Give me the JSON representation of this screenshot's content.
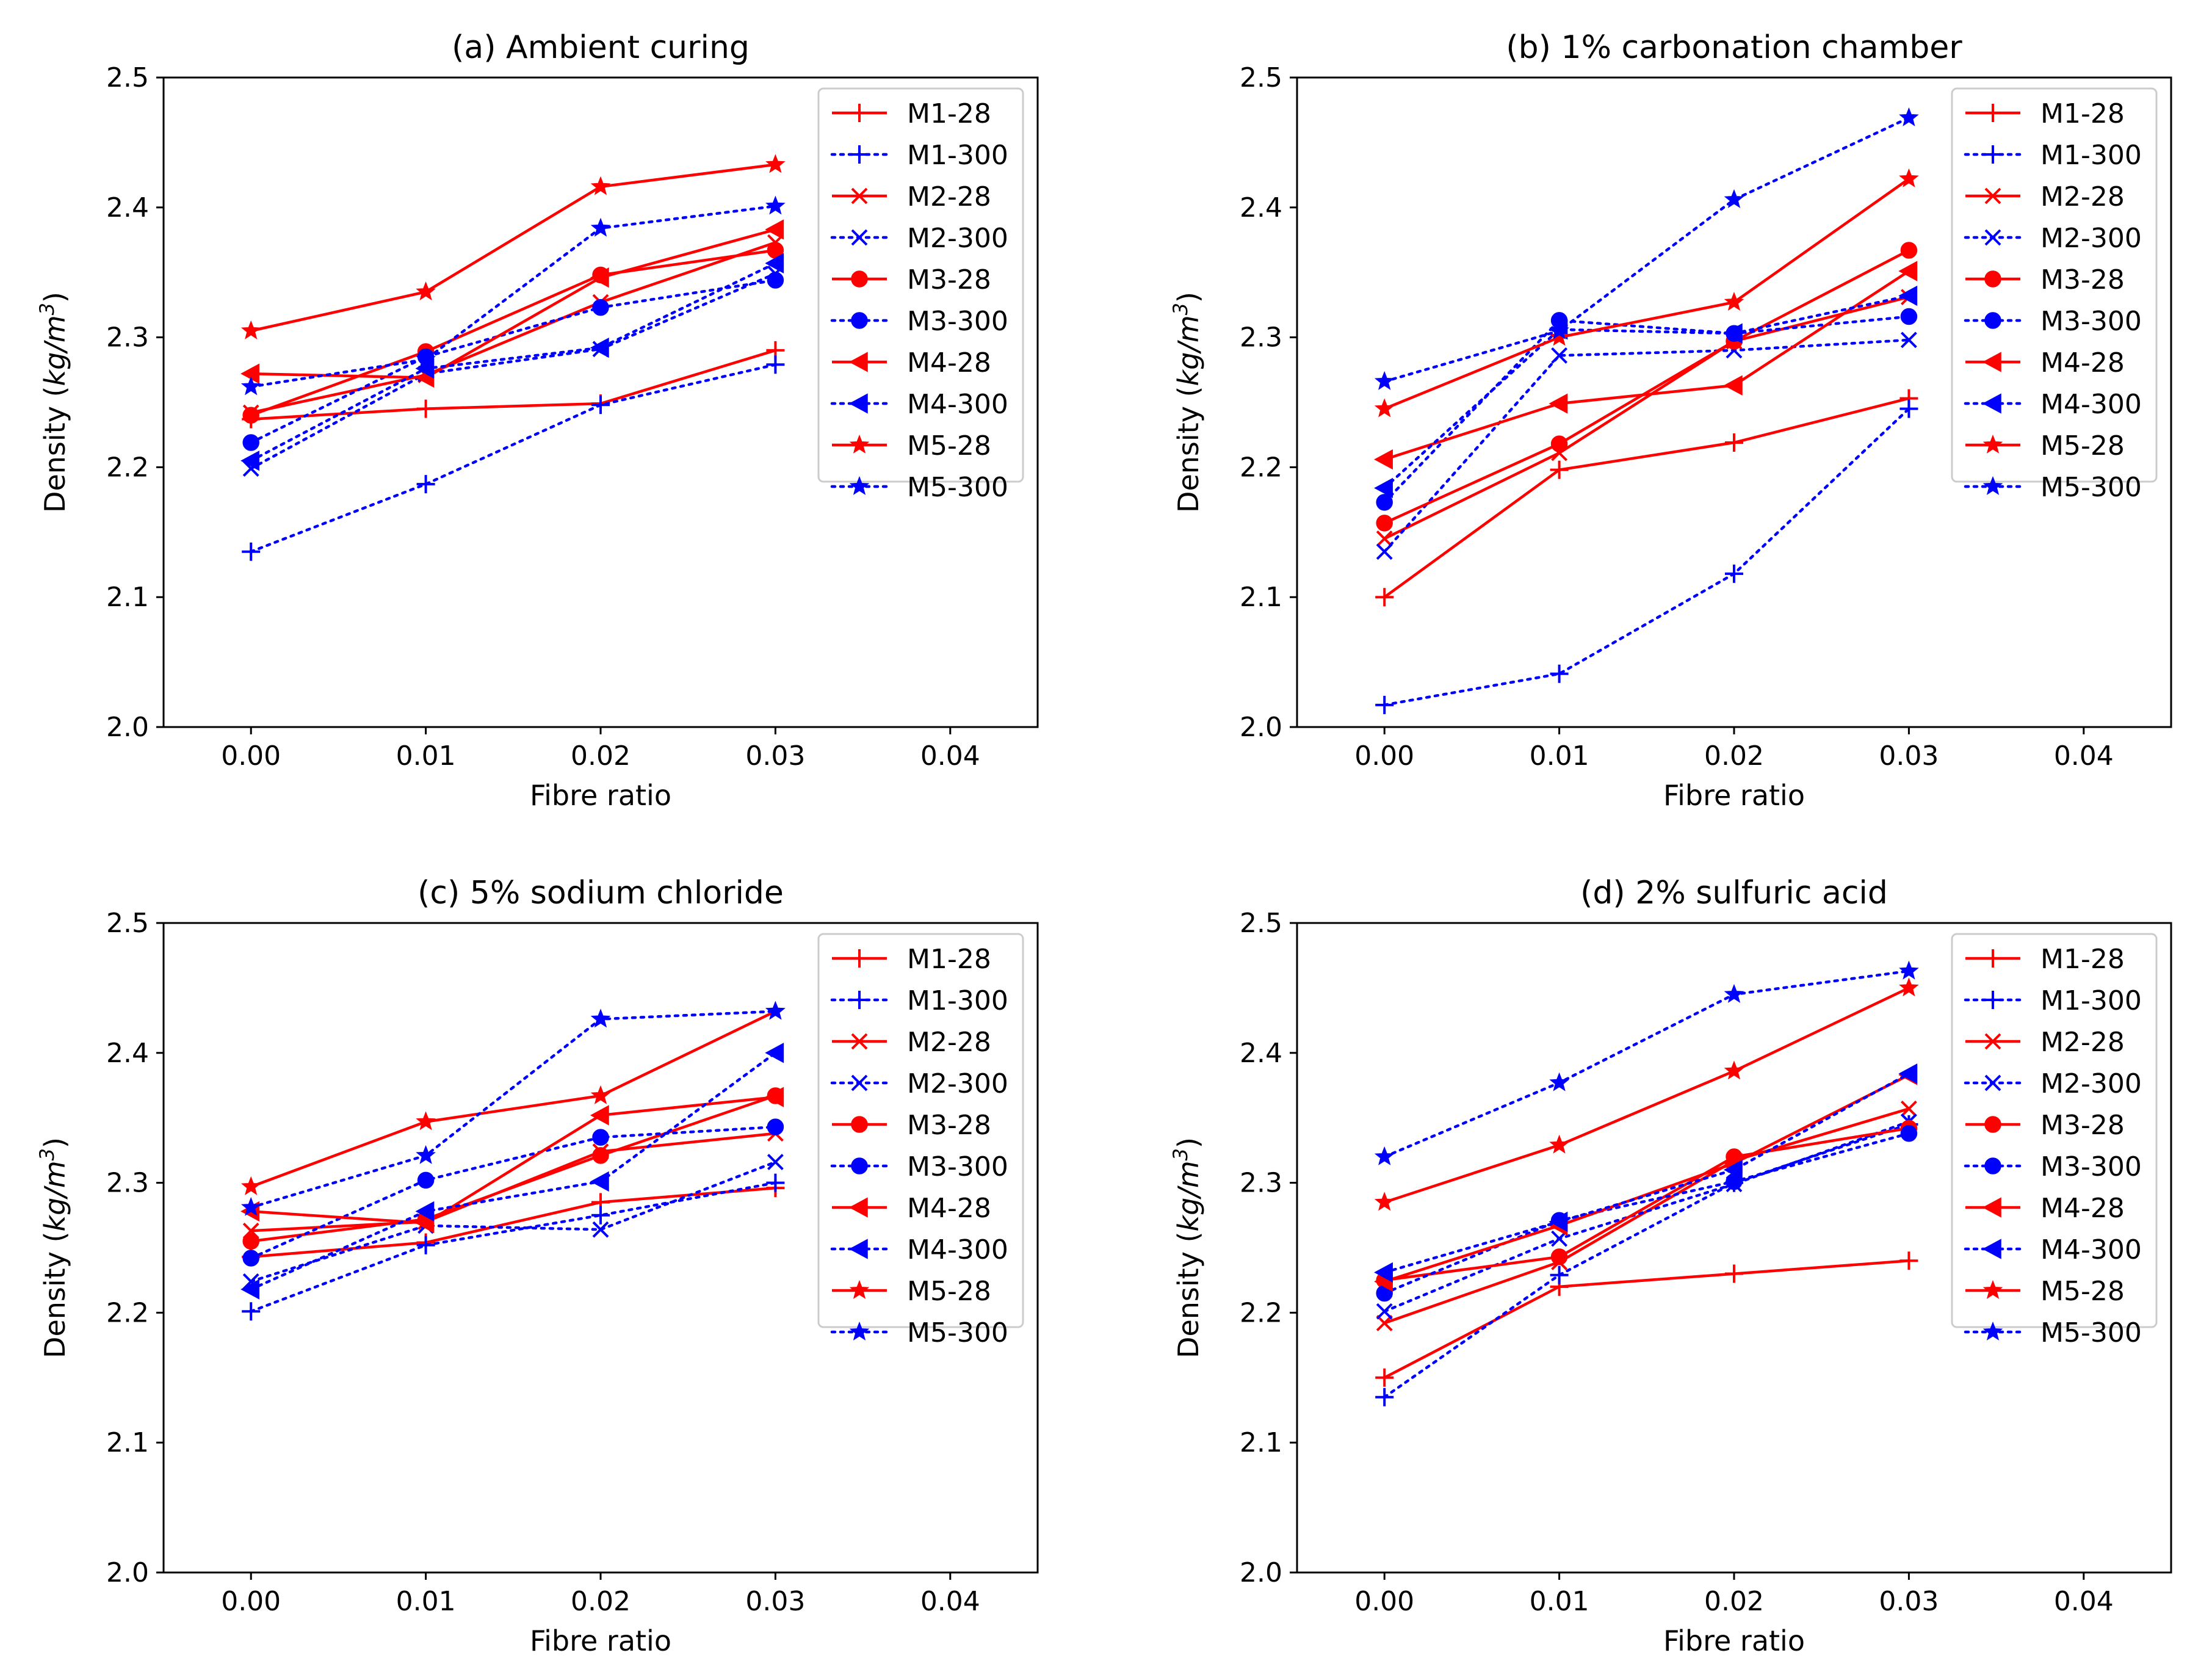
{
  "chart_data": [
    {
      "type": "line",
      "title": "(a) Ambient curing",
      "xlabel": "Fibre ratio",
      "ylabel_text": "Density (",
      "ylabel_unit_base": "kg/m",
      "ylabel_unit_exp": "3",
      "ylabel_close": ")",
      "xlim": [
        -0.005,
        0.045
      ],
      "ylim": [
        2.0,
        2.5
      ],
      "x_ticks": [
        "0.00",
        "0.01",
        "0.02",
        "0.03",
        "0.04"
      ],
      "x_tick_values": [
        0.0,
        0.01,
        0.02,
        0.03,
        0.04
      ],
      "y_ticks": [
        "2.0",
        "2.1",
        "2.2",
        "2.3",
        "2.4",
        "2.5"
      ],
      "y_tick_values": [
        2.0,
        2.1,
        2.2,
        2.3,
        2.4,
        2.5
      ],
      "legend_position": "top-right",
      "x": [
        0.0,
        0.01,
        0.02,
        0.03
      ],
      "series": [
        {
          "name": "M1-28",
          "color": "#ff0000",
          "dash": "solid",
          "marker": "plus",
          "values": [
            2.237,
            2.245,
            2.249,
            2.29
          ]
        },
        {
          "name": "M1-300",
          "color": "#0000ff",
          "dash": "dotted",
          "marker": "plus",
          "values": [
            2.135,
            2.187,
            2.248,
            2.279
          ]
        },
        {
          "name": "M2-28",
          "color": "#ff0000",
          "dash": "solid",
          "marker": "x",
          "values": [
            2.242,
            2.271,
            2.327,
            2.373
          ]
        },
        {
          "name": "M2-300",
          "color": "#0000ff",
          "dash": "dotted",
          "marker": "x",
          "values": [
            2.199,
            2.272,
            2.291,
            2.349
          ]
        },
        {
          "name": "M3-28",
          "color": "#ff0000",
          "dash": "solid",
          "marker": "circle",
          "values": [
            2.24,
            2.289,
            2.348,
            2.367
          ]
        },
        {
          "name": "M3-300",
          "color": "#0000ff",
          "dash": "dotted",
          "marker": "circle",
          "values": [
            2.219,
            2.285,
            2.323,
            2.344
          ]
        },
        {
          "name": "M4-28",
          "color": "#ff0000",
          "dash": "solid",
          "marker": "triangle",
          "values": [
            2.272,
            2.269,
            2.346,
            2.383
          ]
        },
        {
          "name": "M4-300",
          "color": "#0000ff",
          "dash": "dotted",
          "marker": "triangle",
          "values": [
            2.205,
            2.276,
            2.292,
            2.357
          ]
        },
        {
          "name": "M5-28",
          "color": "#ff0000",
          "dash": "solid",
          "marker": "star",
          "values": [
            2.305,
            2.335,
            2.416,
            2.433
          ]
        },
        {
          "name": "M5-300",
          "color": "#0000ff",
          "dash": "dotted",
          "marker": "star",
          "values": [
            2.262,
            2.283,
            2.384,
            2.401
          ]
        }
      ]
    },
    {
      "type": "line",
      "title": "(b) 1% carbonation chamber",
      "xlabel": "Fibre ratio",
      "ylabel_text": "Density (",
      "ylabel_unit_base": "kg/m",
      "ylabel_unit_exp": "3",
      "ylabel_close": ")",
      "xlim": [
        -0.005,
        0.045
      ],
      "ylim": [
        2.0,
        2.5
      ],
      "x_ticks": [
        "0.00",
        "0.01",
        "0.02",
        "0.03",
        "0.04"
      ],
      "x_tick_values": [
        0.0,
        0.01,
        0.02,
        0.03,
        0.04
      ],
      "y_ticks": [
        "2.0",
        "2.1",
        "2.2",
        "2.3",
        "2.4",
        "2.5"
      ],
      "y_tick_values": [
        2.0,
        2.1,
        2.2,
        2.3,
        2.4,
        2.5
      ],
      "legend_position": "top-right",
      "x": [
        0.0,
        0.01,
        0.02,
        0.03
      ],
      "series": [
        {
          "name": "M1-28",
          "color": "#ff0000",
          "dash": "solid",
          "marker": "plus",
          "values": [
            2.1,
            2.198,
            2.219,
            2.253
          ]
        },
        {
          "name": "M1-300",
          "color": "#0000ff",
          "dash": "dotted",
          "marker": "plus",
          "values": [
            2.017,
            2.041,
            2.118,
            2.245
          ]
        },
        {
          "name": "M2-28",
          "color": "#ff0000",
          "dash": "solid",
          "marker": "x",
          "values": [
            2.145,
            2.211,
            2.297,
            2.331
          ]
        },
        {
          "name": "M2-300",
          "color": "#0000ff",
          "dash": "dotted",
          "marker": "x",
          "values": [
            2.135,
            2.286,
            2.29,
            2.298
          ]
        },
        {
          "name": "M3-28",
          "color": "#ff0000",
          "dash": "solid",
          "marker": "circle",
          "values": [
            2.157,
            2.218,
            2.297,
            2.367
          ]
        },
        {
          "name": "M3-300",
          "color": "#0000ff",
          "dash": "dotted",
          "marker": "circle",
          "values": [
            2.173,
            2.313,
            2.303,
            2.316
          ]
        },
        {
          "name": "M4-28",
          "color": "#ff0000",
          "dash": "solid",
          "marker": "triangle",
          "values": [
            2.206,
            2.249,
            2.263,
            2.351
          ]
        },
        {
          "name": "M4-300",
          "color": "#0000ff",
          "dash": "dotted",
          "marker": "triangle",
          "values": [
            2.184,
            2.306,
            2.303,
            2.332
          ]
        },
        {
          "name": "M5-28",
          "color": "#ff0000",
          "dash": "solid",
          "marker": "star",
          "values": [
            2.245,
            2.3,
            2.327,
            2.422
          ]
        },
        {
          "name": "M5-300",
          "color": "#0000ff",
          "dash": "dotted",
          "marker": "star",
          "values": [
            2.266,
            2.305,
            2.406,
            2.469
          ]
        }
      ]
    },
    {
      "type": "line",
      "title": "(c) 5% sodium chloride",
      "xlabel": "Fibre ratio",
      "ylabel_text": "Density (",
      "ylabel_unit_base": "kg/m",
      "ylabel_unit_exp": "3",
      "ylabel_close": ")",
      "xlim": [
        -0.005,
        0.045
      ],
      "ylim": [
        2.0,
        2.5
      ],
      "x_ticks": [
        "0.00",
        "0.01",
        "0.02",
        "0.03",
        "0.04"
      ],
      "x_tick_values": [
        0.0,
        0.01,
        0.02,
        0.03,
        0.04
      ],
      "y_ticks": [
        "2.0",
        "2.1",
        "2.2",
        "2.3",
        "2.4",
        "2.5"
      ],
      "y_tick_values": [
        2.0,
        2.1,
        2.2,
        2.3,
        2.4,
        2.5
      ],
      "legend_position": "top-right",
      "x": [
        0.0,
        0.01,
        0.02,
        0.03
      ],
      "series": [
        {
          "name": "M1-28",
          "color": "#ff0000",
          "dash": "solid",
          "marker": "plus",
          "values": [
            2.243,
            2.254,
            2.285,
            2.296
          ]
        },
        {
          "name": "M1-300",
          "color": "#0000ff",
          "dash": "dotted",
          "marker": "plus",
          "values": [
            2.201,
            2.252,
            2.275,
            2.3
          ]
        },
        {
          "name": "M2-28",
          "color": "#ff0000",
          "dash": "solid",
          "marker": "x",
          "values": [
            2.263,
            2.27,
            2.324,
            2.338
          ]
        },
        {
          "name": "M2-300",
          "color": "#0000ff",
          "dash": "dotted",
          "marker": "x",
          "values": [
            2.224,
            2.267,
            2.264,
            2.316
          ]
        },
        {
          "name": "M3-28",
          "color": "#ff0000",
          "dash": "solid",
          "marker": "circle",
          "values": [
            2.255,
            2.272,
            2.321,
            2.367
          ]
        },
        {
          "name": "M3-300",
          "color": "#0000ff",
          "dash": "dotted",
          "marker": "circle",
          "values": [
            2.242,
            2.302,
            2.335,
            2.343
          ]
        },
        {
          "name": "M4-28",
          "color": "#ff0000",
          "dash": "solid",
          "marker": "triangle",
          "values": [
            2.278,
            2.269,
            2.352,
            2.366
          ]
        },
        {
          "name": "M4-300",
          "color": "#0000ff",
          "dash": "dotted",
          "marker": "triangle",
          "values": [
            2.218,
            2.278,
            2.301,
            2.4
          ]
        },
        {
          "name": "M5-28",
          "color": "#ff0000",
          "dash": "solid",
          "marker": "star",
          "values": [
            2.297,
            2.347,
            2.367,
            2.432
          ]
        },
        {
          "name": "M5-300",
          "color": "#0000ff",
          "dash": "dotted",
          "marker": "star",
          "values": [
            2.281,
            2.321,
            2.426,
            2.432
          ]
        }
      ]
    },
    {
      "type": "line",
      "title": "(d) 2% sulfuric acid",
      "xlabel": "Fibre ratio",
      "ylabel_text": "Density (",
      "ylabel_unit_base": "kg/m",
      "ylabel_unit_exp": "3",
      "ylabel_close": ")",
      "xlim": [
        -0.005,
        0.045
      ],
      "ylim": [
        2.0,
        2.5
      ],
      "x_ticks": [
        "0.00",
        "0.01",
        "0.02",
        "0.03",
        "0.04"
      ],
      "x_tick_values": [
        0.0,
        0.01,
        0.02,
        0.03,
        0.04
      ],
      "y_ticks": [
        "2.0",
        "2.1",
        "2.2",
        "2.3",
        "2.4",
        "2.5"
      ],
      "y_tick_values": [
        2.0,
        2.1,
        2.2,
        2.3,
        2.4,
        2.5
      ],
      "legend_position": "top-right",
      "x": [
        0.0,
        0.01,
        0.02,
        0.03
      ],
      "series": [
        {
          "name": "M1-28",
          "color": "#ff0000",
          "dash": "solid",
          "marker": "plus",
          "values": [
            2.15,
            2.22,
            2.23,
            2.24
          ]
        },
        {
          "name": "M1-300",
          "color": "#0000ff",
          "dash": "dotted",
          "marker": "plus",
          "values": [
            2.135,
            2.229,
            2.3,
            2.345
          ]
        },
        {
          "name": "M2-28",
          "color": "#ff0000",
          "dash": "solid",
          "marker": "x",
          "values": [
            2.192,
            2.239,
            2.317,
            2.357
          ]
        },
        {
          "name": "M2-300",
          "color": "#0000ff",
          "dash": "dotted",
          "marker": "x",
          "values": [
            2.201,
            2.257,
            2.299,
            2.347
          ]
        },
        {
          "name": "M3-28",
          "color": "#ff0000",
          "dash": "solid",
          "marker": "circle",
          "values": [
            2.225,
            2.243,
            2.32,
            2.342
          ]
        },
        {
          "name": "M3-300",
          "color": "#0000ff",
          "dash": "dotted",
          "marker": "circle",
          "values": [
            2.215,
            2.271,
            2.301,
            2.338
          ]
        },
        {
          "name": "M4-28",
          "color": "#ff0000",
          "dash": "solid",
          "marker": "triangle",
          "values": [
            2.224,
            2.267,
            2.315,
            2.383
          ]
        },
        {
          "name": "M4-300",
          "color": "#0000ff",
          "dash": "dotted",
          "marker": "triangle",
          "values": [
            2.231,
            2.27,
            2.31,
            2.384
          ]
        },
        {
          "name": "M5-28",
          "color": "#ff0000",
          "dash": "solid",
          "marker": "star",
          "values": [
            2.285,
            2.329,
            2.386,
            2.45
          ]
        },
        {
          "name": "M5-300",
          "color": "#0000ff",
          "dash": "dotted",
          "marker": "star",
          "values": [
            2.32,
            2.377,
            2.445,
            2.463
          ]
        }
      ]
    }
  ]
}
